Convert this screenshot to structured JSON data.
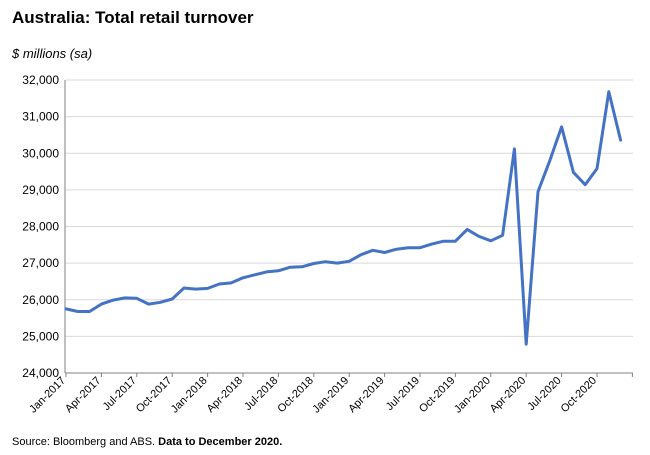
{
  "chart_data": {
    "type": "line",
    "title": "Australia: Total retail turnover",
    "ylabel": "$ millions (sa)",
    "xlabel": "",
    "ylim": [
      24000,
      32000
    ],
    "y_ticks": [
      24000,
      25000,
      26000,
      27000,
      28000,
      29000,
      30000,
      31000,
      32000
    ],
    "y_tick_labels": [
      "24,000",
      "25,000",
      "26,000",
      "27,000",
      "28,000",
      "29,000",
      "30,000",
      "31,000",
      "32,000"
    ],
    "x_tick_labels": [
      "Jan-2017",
      "Apr-2017",
      "Jul-2017",
      "Oct-2017",
      "Jan-2018",
      "Apr-2018",
      "Jul-2018",
      "Oct-2018",
      "Jan-2019",
      "Apr-2019",
      "Jul-2019",
      "Oct-2019",
      "Jan-2020",
      "Apr-2020",
      "Jul-2020",
      "Oct-2020"
    ],
    "x_tick_every": 3,
    "grid": "horizontal",
    "line_color": "#4472C4",
    "series": [
      {
        "x": [
          "Jan-2017",
          "Feb-2017",
          "Mar-2017",
          "Apr-2017",
          "May-2017",
          "Jun-2017",
          "Jul-2017",
          "Aug-2017",
          "Sep-2017",
          "Oct-2017",
          "Nov-2017",
          "Dec-2017",
          "Jan-2018",
          "Feb-2018",
          "Mar-2018",
          "Apr-2018",
          "May-2018",
          "Jun-2018",
          "Jul-2018",
          "Aug-2018",
          "Sep-2018",
          "Oct-2018",
          "Nov-2018",
          "Dec-2018",
          "Jan-2019",
          "Feb-2019",
          "Mar-2019",
          "Apr-2019",
          "May-2019",
          "Jun-2019",
          "Jul-2019",
          "Aug-2019",
          "Sep-2019",
          "Oct-2019",
          "Nov-2019",
          "Dec-2019",
          "Jan-2020",
          "Feb-2020",
          "Mar-2020",
          "Apr-2020",
          "May-2020",
          "Jun-2020",
          "Jul-2020",
          "Aug-2020",
          "Sep-2020",
          "Oct-2020",
          "Nov-2020",
          "Dec-2020"
        ],
        "values": [
          25750,
          25680,
          25680,
          25880,
          25990,
          26050,
          26040,
          25880,
          25930,
          26020,
          26320,
          26290,
          26310,
          26430,
          26460,
          26600,
          26680,
          26760,
          26790,
          26890,
          26900,
          26990,
          27040,
          27000,
          27050,
          27230,
          27350,
          27290,
          27380,
          27420,
          27420,
          27520,
          27600,
          27600,
          27920,
          27730,
          27610,
          27760,
          30120,
          24790,
          28950,
          29800,
          30720,
          29480,
          29140,
          29580,
          31680,
          30360
        ]
      }
    ]
  },
  "footer": {
    "source_text": "Source: Bloomberg and ABS.",
    "source_note": "Data to December 2020."
  }
}
